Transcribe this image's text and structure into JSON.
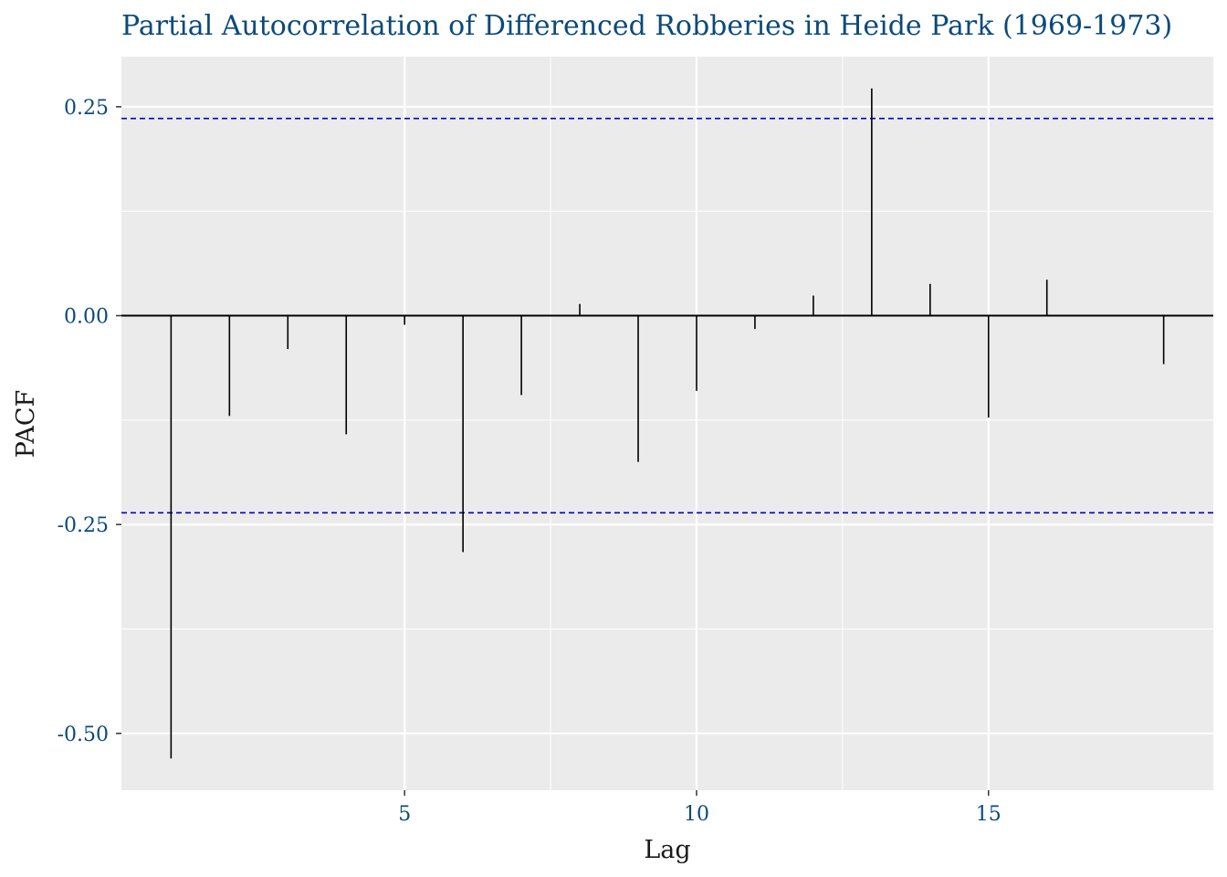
{
  "chart_data": {
    "type": "bar",
    "title": "Partial Autocorrelation of Differenced Robberies in Heide Park (1969-1973)",
    "xlabel": "Lag",
    "ylabel": "PACF",
    "x": [
      1,
      2,
      3,
      4,
      5,
      6,
      7,
      8,
      9,
      10,
      11,
      12,
      13,
      14,
      15,
      16,
      17,
      18
    ],
    "values": [
      -0.53,
      -0.12,
      -0.04,
      -0.142,
      -0.011,
      -0.283,
      -0.095,
      0.014,
      -0.175,
      -0.09,
      -0.016,
      0.024,
      0.272,
      0.038,
      -0.122,
      0.043,
      0.001,
      -0.058
    ],
    "xlim": [
      0.15,
      18.85
    ],
    "ylim": [
      -0.568,
      0.31
    ],
    "x_ticks": [
      5,
      10,
      15
    ],
    "x_tick_labels": [
      "5",
      "10",
      "15"
    ],
    "y_ticks": [
      -0.5,
      -0.25,
      0.0,
      0.25
    ],
    "y_tick_labels": [
      "-0.50",
      "-0.25",
      "0.00",
      "0.25"
    ],
    "confidence_bound": 0.236,
    "confidence_line_color": "#0000cc",
    "bar_color": "#000000",
    "zero_line_color": "#000000",
    "panel_background": "#ebebeb",
    "grid": true,
    "legend": "none"
  }
}
